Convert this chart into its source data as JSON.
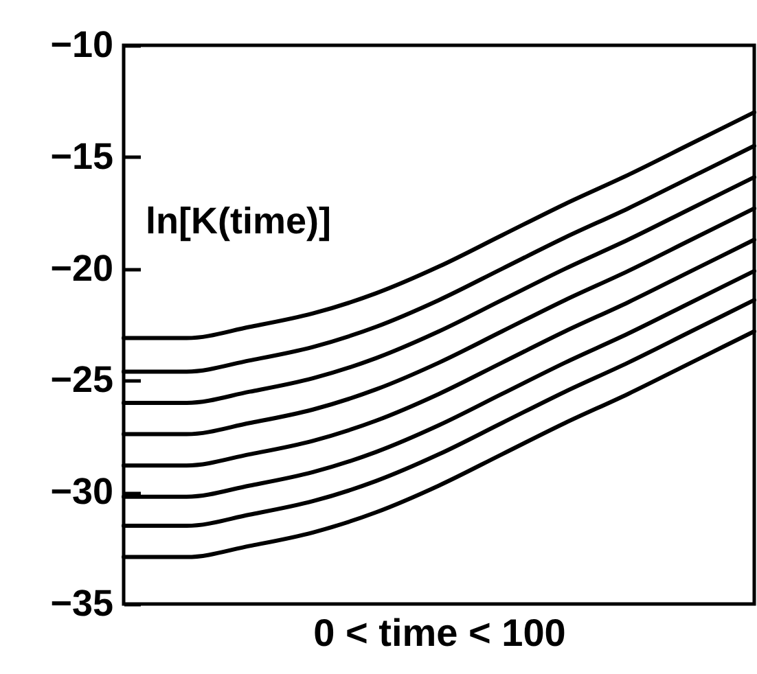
{
  "chart_data": {
    "type": "line",
    "xlabel": "0 < time < 100",
    "annotations": [
      "ln[K(time)]"
    ],
    "categories": [
      null,
      null,
      null,
      null,
      null,
      null,
      null,
      null,
      null,
      null,
      null
    ],
    "ylim": [
      -35,
      -10
    ],
    "yticks": [
      -35,
      -30,
      -25,
      -20,
      -15,
      -10
    ],
    "tick_labels": "y",
    "grid": false,
    "marker": "none",
    "line_style": "solid",
    "series": [
      {
        "color": "#000000",
        "values": [
          -23.1,
          -23.1,
          -22.6,
          -22.0,
          -21.1,
          -19.9,
          -18.5,
          -17.1,
          -15.8,
          -14.4,
          -13.0
        ]
      },
      {
        "color": "#000000",
        "values": [
          -24.6,
          -24.6,
          -24.1,
          -23.5,
          -22.6,
          -21.4,
          -20.0,
          -18.6,
          -17.3,
          -15.9,
          -14.5
        ]
      },
      {
        "color": "#000000",
        "values": [
          -26.0,
          -26.0,
          -25.5,
          -24.9,
          -24.0,
          -22.8,
          -21.4,
          -20.0,
          -18.7,
          -17.3,
          -15.9
        ]
      },
      {
        "color": "#000000",
        "values": [
          -27.4,
          -27.4,
          -26.9,
          -26.3,
          -25.4,
          -24.2,
          -22.8,
          -21.4,
          -20.1,
          -18.7,
          -17.3
        ]
      },
      {
        "color": "#000000",
        "values": [
          -28.8,
          -28.8,
          -28.3,
          -27.7,
          -26.8,
          -25.6,
          -24.2,
          -22.8,
          -21.5,
          -20.1,
          -18.7
        ]
      },
      {
        "color": "#000000",
        "values": [
          -30.2,
          -30.2,
          -29.7,
          -29.1,
          -28.2,
          -27.0,
          -25.6,
          -24.2,
          -22.9,
          -21.5,
          -20.1
        ]
      },
      {
        "color": "#000000",
        "values": [
          -31.5,
          -31.5,
          -31.0,
          -30.4,
          -29.5,
          -28.3,
          -26.9,
          -25.5,
          -24.2,
          -22.8,
          -21.4
        ]
      },
      {
        "color": "#000000",
        "values": [
          -32.9,
          -32.9,
          -32.4,
          -31.8,
          -30.9,
          -29.7,
          -28.3,
          -26.9,
          -25.6,
          -24.2,
          -22.8
        ]
      }
    ]
  }
}
